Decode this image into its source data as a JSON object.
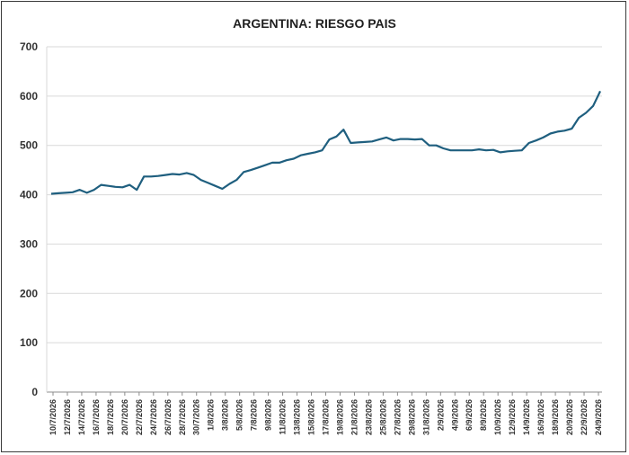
{
  "chart_data": {
    "type": "line",
    "title": "ARGENTINA:  RIESGO PAIS",
    "xlabel": "",
    "ylabel": "",
    "ylim": [
      0,
      700
    ],
    "yticks": [
      0,
      100,
      200,
      300,
      400,
      500,
      600,
      700
    ],
    "grid": true,
    "legend": "none",
    "line_color": "#1f5f7f",
    "x_tick_labels": [
      "10/7/2026",
      "12/7/2026",
      "14/7/2026",
      "16/7/2026",
      "18/7/2026",
      "20/7/2026",
      "22/7/2026",
      "24/7/2026",
      "26/7/2026",
      "28/7/2026",
      "30/7/2026",
      "1/8/2026",
      "3/8/2026",
      "5/8/2026",
      "7/8/2026",
      "9/8/2026",
      "11/8/2026",
      "13/8/2026",
      "15/8/2026",
      "17/8/2026",
      "19/8/2026",
      "21/8/2026",
      "23/8/2026",
      "25/8/2026",
      "27/8/2026",
      "29/8/2026",
      "31/8/2026",
      "2/9/2026",
      "4/9/2026",
      "6/9/2026",
      "8/9/2026",
      "10/9/2026",
      "12/9/2026",
      "14/9/2026",
      "16/9/2026",
      "18/9/2026",
      "20/9/2026",
      "22/9/2026",
      "24/9/2026"
    ],
    "series": [
      {
        "values": [
          402,
          403,
          404,
          405,
          410,
          404,
          410,
          420,
          418,
          416,
          415,
          420,
          410,
          437,
          437,
          438,
          440,
          442,
          441,
          444,
          440,
          430,
          424,
          418,
          412,
          422,
          430,
          446,
          450,
          455,
          460,
          465,
          465,
          470,
          473,
          480,
          483,
          486,
          490,
          512,
          518,
          532,
          505,
          506,
          507,
          508,
          512,
          516,
          510,
          513,
          513,
          512,
          513,
          500,
          500,
          494,
          490,
          490,
          490,
          490,
          492,
          490,
          491,
          486,
          488,
          489,
          490,
          505,
          510,
          516,
          524,
          528,
          530,
          534,
          556,
          566,
          580,
          610
        ]
      }
    ]
  }
}
